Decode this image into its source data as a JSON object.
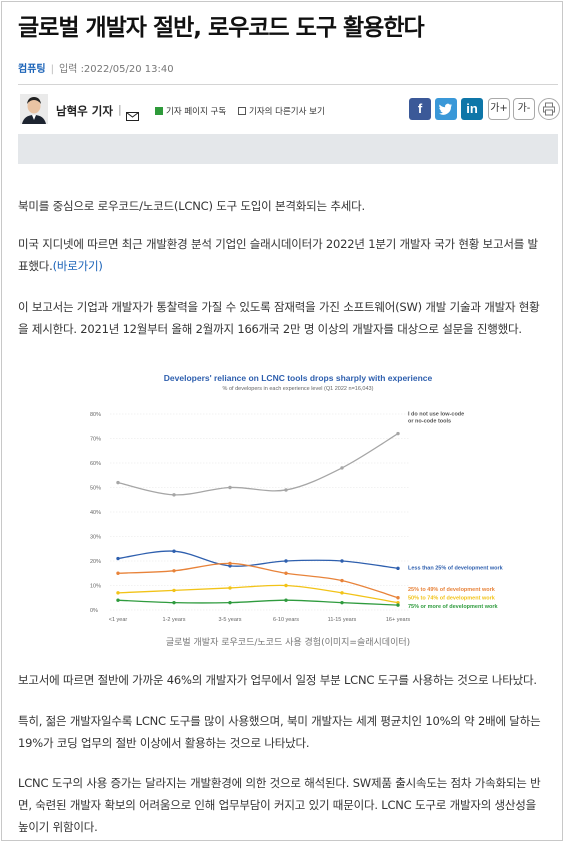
{
  "article": {
    "title": "글로벌 개발자 절반, 로우코드 도구 활용한다",
    "category": "컴퓨팅",
    "date_label": "입력 :2022/05/20 13:40"
  },
  "author": {
    "name": "남혁우 기자",
    "subscribe": "기자 페이지 구독",
    "other_articles": "기자의 다른기사 보기"
  },
  "toolbar": {
    "facebook": "f",
    "twitter": "t",
    "linkedin": "in",
    "font_up": "가+",
    "font_down": "가-"
  },
  "body": {
    "p1": "북미를 중심으로 로우코드/노코드(LCNC) 도구 도입이 본격화되는 추세다.",
    "p2_line1": "미국 지디넷에 따르면 최근 개발환경 분석 기업인 슬래시데이터가 2022년 1분기 개발자 국가 현황 보고서를 발",
    "p2_line2": "표했다.",
    "p2_link": "(바로가기)",
    "p3_line1": "이 보고서는 기업과 개발자가 통찰력을 가질 수 있도록 잠재력을 가진 소프트웨어(SW) 개발 기술과 개발자 현황",
    "p3_line2": "을 제시한다. 2021년 12월부터 올해 2월까지 166개국 2만 명 이상의 개발자를 대상으로 설문을 진행했다.",
    "caption": "글로벌 개발자 로우코드/노코드 사용 경험(이미지=슬래시데이터)",
    "p4": "보고서에 따르면 절반에 가까운 46%의 개발자가 업무에서 일정 부분 LCNC 도구를 사용하는 것으로 나타났다.",
    "p5_line1": "특히, 젊은 개발자일수록 LCNC 도구를 많이 사용했으며, 북미 개발자는 세계 평균치인 10%의 약 2배에 달하는",
    "p5_line2": "19%가 코딩 업무의 절반 이상에서 활용하는 것으로 나타났다.",
    "p6_line1": "LCNC 도구의 사용 증가는 달라지는 개발환경에 의한 것으로 해석된다. SW제품 출시속도는 점차 가속화되는 반",
    "p6_line2": "면, 숙련된 개발자 확보의 어려움으로 인해 업무부담이 커지고 있기 때문이다. LCNC 도구로 개발자의 생산성을",
    "p6_line3": "높이기 위함이다."
  },
  "chart_data": {
    "type": "line",
    "title": "Developers' reliance on LCNC tools drops sharply with experience",
    "subtitle": "% of developers in each experience level (Q1 2022 n=16,043)",
    "categories": [
      "<1 year",
      "1-2 years",
      "3-5 years",
      "6-10 years",
      "11-15 years",
      "16+ years"
    ],
    "ylim": [
      0,
      80
    ],
    "yticks": [
      "0%",
      "10%",
      "20%",
      "30%",
      "40%",
      "50%",
      "60%",
      "70%",
      "80%"
    ],
    "series": [
      {
        "name": "I do not use low-code or no-code tools",
        "color": "#a6a6a6",
        "values": [
          52,
          47,
          50,
          49,
          58,
          72
        ]
      },
      {
        "name": "Less than 25% of development work",
        "color": "#2e5fae",
        "values": [
          21,
          24,
          18,
          20,
          20,
          17
        ]
      },
      {
        "name": "25% to 49% of development work",
        "color": "#e8833a",
        "values": [
          15,
          16,
          19,
          15,
          12,
          5
        ]
      },
      {
        "name": "50% to 74% of development work",
        "color": "#f2c318",
        "values": [
          7,
          8,
          9,
          10,
          7,
          3
        ]
      },
      {
        "name": "75% or more of development work",
        "color": "#2f9b3e",
        "values": [
          4,
          3,
          3,
          4,
          3,
          2
        ]
      }
    ]
  }
}
